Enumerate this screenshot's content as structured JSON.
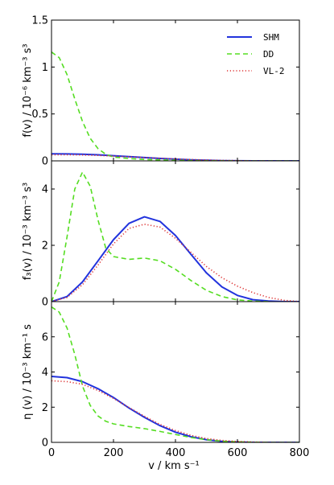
{
  "chart_data": {
    "type": "line",
    "x_label": "v / km s⁻¹",
    "x_ticks": [
      0,
      200,
      400,
      600,
      800
    ],
    "xlim": [
      0,
      800
    ],
    "grid": false,
    "legend": {
      "panel": 0,
      "placement": "top-right",
      "entries": [
        {
          "name": "SHM",
          "color": "#2233dd",
          "style": "solid"
        },
        {
          "name": "DD",
          "color": "#55dd22",
          "style": "dashed"
        },
        {
          "name": "VL-2",
          "color": "#dd3333",
          "style": "dotted"
        }
      ]
    },
    "panels": [
      {
        "ylabel": "f(v) / 10⁻⁶ km⁻³ s³",
        "ylim": [
          0,
          1.5
        ],
        "y_ticks": [
          0,
          0.5,
          1,
          1.5
        ],
        "y_tick_labels": [
          "0",
          "0.5",
          "1",
          "1.5"
        ],
        "series": [
          {
            "name": "SHM",
            "color": "#2233dd",
            "style": "solid",
            "x": [
              0,
              50,
              100,
              150,
              200,
              250,
              300,
              350,
              400,
              450,
              500,
              550,
              600,
              650,
              700,
              750,
              800
            ],
            "y": [
              0.075,
              0.074,
              0.071,
              0.064,
              0.055,
              0.045,
              0.035,
              0.026,
              0.018,
              0.011,
              0.006,
              0.003,
              0.001,
              0.0,
              0.0,
              0.0,
              0.0
            ]
          },
          {
            "name": "DD",
            "color": "#55dd22",
            "style": "dashed",
            "x": [
              0,
              25,
              50,
              75,
              100,
              125,
              150,
              175,
              200,
              250,
              300,
              400,
              500,
              600,
              800
            ],
            "y": [
              1.16,
              1.1,
              0.92,
              0.66,
              0.42,
              0.24,
              0.13,
              0.07,
              0.04,
              0.025,
              0.015,
              0.006,
              0.002,
              0.0,
              0.0
            ]
          },
          {
            "name": "VL-2",
            "color": "#dd3333",
            "style": "dotted",
            "x": [
              0,
              50,
              100,
              150,
              200,
              250,
              300,
              350,
              400,
              450,
              500,
              550,
              600,
              650,
              700,
              750,
              800
            ],
            "y": [
              0.065,
              0.065,
              0.063,
              0.058,
              0.051,
              0.043,
              0.035,
              0.027,
              0.02,
              0.014,
              0.009,
              0.005,
              0.003,
              0.001,
              0.0,
              0.0,
              0.0
            ]
          }
        ]
      },
      {
        "ylabel": "f₃(v) / 10⁻³ km⁻³ s³",
        "ylim": [
          0,
          5
        ],
        "y_ticks": [
          0,
          2,
          4
        ],
        "y_tick_labels": [
          "0",
          "2",
          "4"
        ],
        "series": [
          {
            "name": "SHM",
            "color": "#2233dd",
            "style": "solid",
            "x": [
              0,
              50,
              100,
              150,
              200,
              250,
              300,
              350,
              400,
              450,
              500,
              550,
              600,
              650,
              700,
              750,
              800
            ],
            "y": [
              0.0,
              0.18,
              0.7,
              1.45,
              2.2,
              2.78,
              3.01,
              2.85,
              2.35,
              1.68,
              1.02,
              0.52,
              0.22,
              0.07,
              0.02,
              0.0,
              0.0
            ]
          },
          {
            "name": "DD",
            "color": "#55dd22",
            "style": "dashed",
            "x": [
              0,
              25,
              50,
              75,
              100,
              125,
              150,
              175,
              200,
              250,
              300,
              350,
              400,
              450,
              500,
              550,
              600,
              650,
              700
            ],
            "y": [
              0.0,
              0.7,
              2.3,
              4.0,
              4.6,
              4.1,
              2.9,
              1.9,
              1.6,
              1.5,
              1.55,
              1.45,
              1.15,
              0.75,
              0.4,
              0.18,
              0.06,
              0.02,
              0.0
            ]
          },
          {
            "name": "VL-2",
            "color": "#dd3333",
            "style": "dotted",
            "x": [
              0,
              50,
              100,
              150,
              200,
              250,
              300,
              350,
              400,
              450,
              500,
              550,
              600,
              650,
              700,
              750,
              800
            ],
            "y": [
              0.0,
              0.15,
              0.6,
              1.3,
              2.05,
              2.6,
              2.75,
              2.65,
              2.25,
              1.75,
              1.25,
              0.85,
              0.55,
              0.32,
              0.15,
              0.05,
              0.0
            ]
          }
        ]
      },
      {
        "ylabel": "η (v) / 10⁻³ km⁻¹ s",
        "ylim": [
          0,
          8
        ],
        "y_ticks": [
          0,
          2,
          4,
          6
        ],
        "y_tick_labels": [
          "0",
          "2",
          "4",
          "6"
        ],
        "series": [
          {
            "name": "SHM",
            "color": "#2233dd",
            "style": "solid",
            "x": [
              0,
              50,
              100,
              150,
              200,
              250,
              300,
              350,
              400,
              450,
              500,
              550,
              600,
              650,
              700,
              750,
              800
            ],
            "y": [
              3.75,
              3.68,
              3.45,
              3.05,
              2.55,
              1.95,
              1.42,
              0.95,
              0.58,
              0.32,
              0.15,
              0.06,
              0.02,
              0.0,
              0.0,
              0.0,
              0.0
            ]
          },
          {
            "name": "DD",
            "color": "#55dd22",
            "style": "dashed",
            "x": [
              0,
              25,
              50,
              75,
              100,
              125,
              150,
              175,
              200,
              250,
              300,
              350,
              400,
              450,
              500,
              550,
              600,
              650,
              700,
              800
            ],
            "y": [
              7.7,
              7.4,
              6.5,
              5.0,
              3.2,
              2.1,
              1.5,
              1.2,
              1.05,
              0.9,
              0.78,
              0.62,
              0.45,
              0.28,
              0.15,
              0.07,
              0.03,
              0.01,
              0.0,
              0.0
            ]
          },
          {
            "name": "VL-2",
            "color": "#dd3333",
            "style": "dotted",
            "x": [
              0,
              50,
              100,
              150,
              200,
              250,
              300,
              350,
              400,
              450,
              500,
              550,
              600,
              650,
              700,
              750,
              800
            ],
            "y": [
              3.5,
              3.45,
              3.3,
              2.95,
              2.5,
              1.98,
              1.48,
              1.02,
              0.67,
              0.4,
              0.22,
              0.11,
              0.05,
              0.02,
              0.0,
              0.0,
              0.0
            ]
          }
        ]
      }
    ]
  }
}
